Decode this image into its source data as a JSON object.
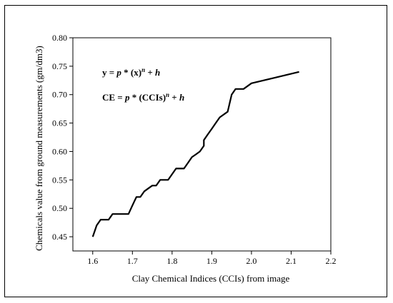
{
  "chart_data": {
    "type": "line",
    "title": "",
    "xlabel": "Clay Chemical Indices (CCIs) from image",
    "ylabel": "Chemicals value from ground measurements (gm/dm3)",
    "xlim": [
      1.55,
      2.2
    ],
    "ylim": [
      0.425,
      0.8
    ],
    "x_ticks": [
      1.6,
      1.7,
      1.8,
      1.9,
      2.0,
      2.1,
      2.2
    ],
    "x_tick_labels": [
      "1.6",
      "1.7",
      "1.8",
      "1.9",
      "2.0",
      "2.1",
      "2.2"
    ],
    "y_ticks": [
      0.45,
      0.5,
      0.55,
      0.6,
      0.65,
      0.7,
      0.75,
      0.8
    ],
    "y_tick_labels": [
      "0.45",
      "0.50",
      "0.55",
      "0.60",
      "0.65",
      "0.70",
      "0.75",
      "0.80"
    ],
    "grid": false,
    "annotations": {
      "eq1": {
        "a": "y = ",
        "b": "p",
        "c": " * (x)",
        "d": "n",
        "e": " + ",
        "f": "h"
      },
      "eq2": {
        "a": "CE = ",
        "b": "p",
        "c": " * (CCIs)",
        "d": "n",
        "e": " + ",
        "f": "h"
      }
    },
    "series": [
      {
        "x": [
          1.6,
          1.61,
          1.62,
          1.64,
          1.65,
          1.66,
          1.67,
          1.68,
          1.69,
          1.7,
          1.71,
          1.72,
          1.73,
          1.74,
          1.75,
          1.76,
          1.77,
          1.78,
          1.79,
          1.8,
          1.81,
          1.82,
          1.83,
          1.84,
          1.85,
          1.86,
          1.87,
          1.88,
          1.88,
          1.89,
          1.9,
          1.91,
          1.92,
          1.94,
          1.95,
          1.96,
          1.97,
          1.98,
          2.0,
          2.12
        ],
        "y": [
          0.45,
          0.47,
          0.48,
          0.48,
          0.49,
          0.49,
          0.49,
          0.49,
          0.49,
          0.505,
          0.52,
          0.52,
          0.53,
          0.535,
          0.54,
          0.54,
          0.55,
          0.55,
          0.55,
          0.56,
          0.57,
          0.57,
          0.57,
          0.58,
          0.59,
          0.595,
          0.6,
          0.61,
          0.62,
          0.63,
          0.64,
          0.65,
          0.66,
          0.67,
          0.7,
          0.71,
          0.71,
          0.71,
          0.72,
          0.74
        ]
      }
    ]
  }
}
